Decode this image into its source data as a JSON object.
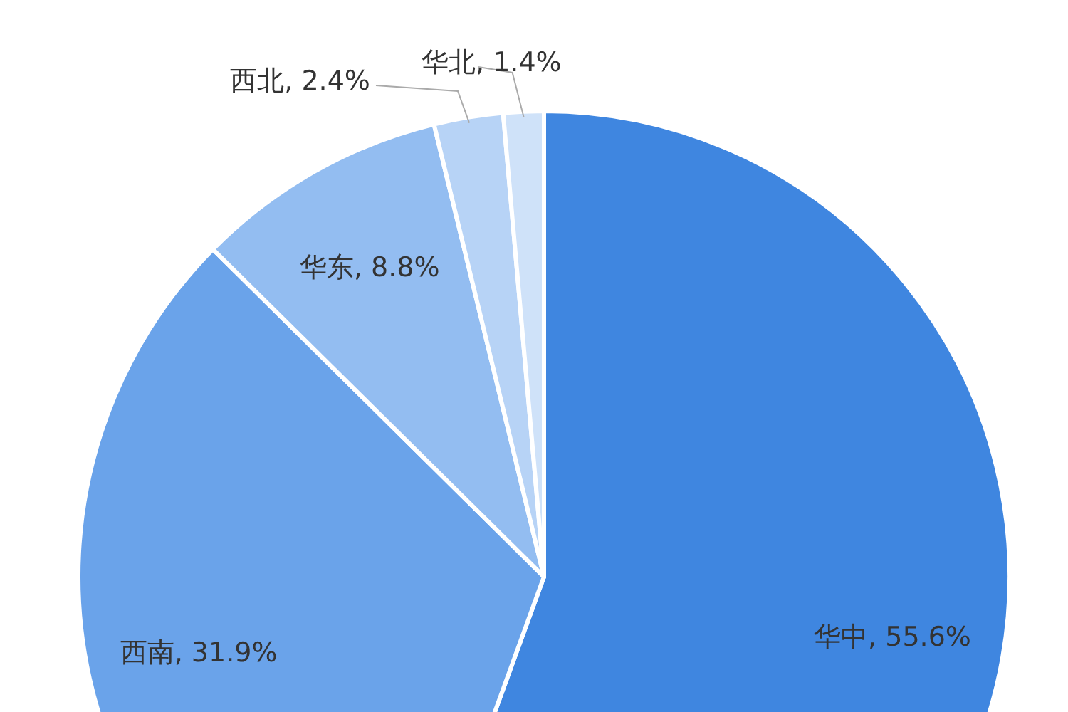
{
  "chart_data": {
    "type": "pie",
    "categories": [
      "华中",
      "西南",
      "华东",
      "西北",
      "华北"
    ],
    "values": [
      55.6,
      31.9,
      8.8,
      2.4,
      1.4
    ],
    "value_labels": [
      "55.6%",
      "31.9%",
      "8.8%",
      "2.4%",
      "1.4%"
    ],
    "colors": [
      "#3f86e0",
      "#6aa3ea",
      "#93bdf1",
      "#b7d3f6",
      "#cfe2f9"
    ]
  }
}
